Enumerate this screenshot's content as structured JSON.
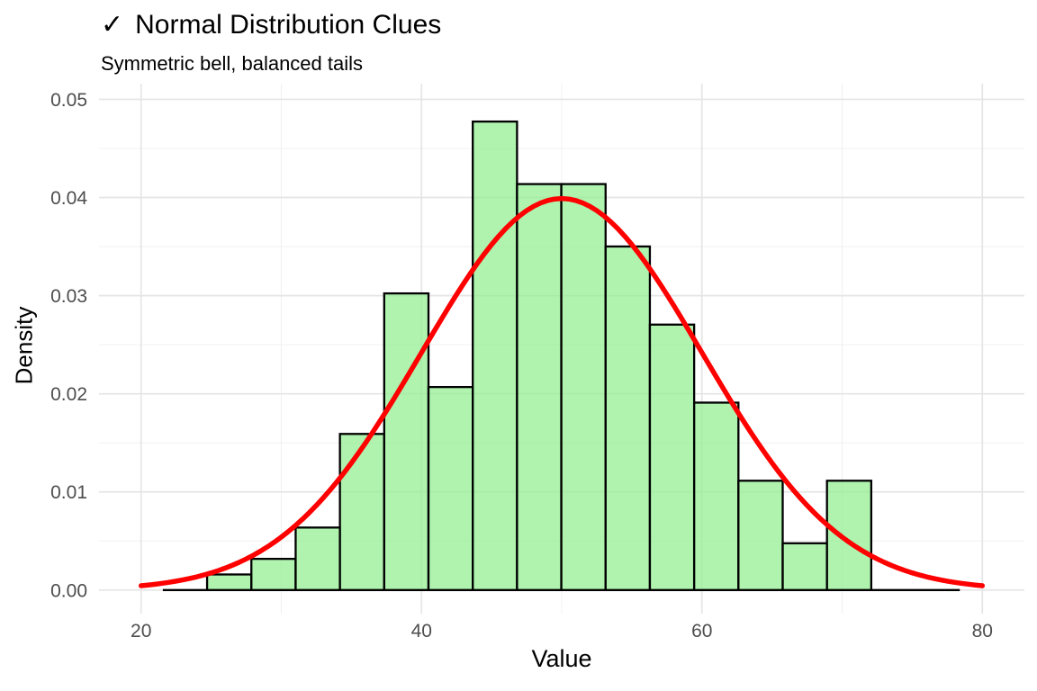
{
  "header": {
    "check_icon": "✓",
    "title": "Normal Distribution Clues",
    "subtitle": "Symmetric bell, balanced tails"
  },
  "chart_data": {
    "type": "bar",
    "subtype": "density-histogram-with-normal-curve",
    "title": "✓ Normal Distribution Clues",
    "subtitle": "Symmetric bell, balanced tails",
    "xlabel": "Value",
    "ylabel": "Density",
    "xlim": [
      17,
      83
    ],
    "ylim": [
      -0.0024,
      0.0516
    ],
    "grid": "major+minor, no axis lines, no tick marks",
    "legend": "none",
    "x_ticks": [
      20,
      40,
      60,
      80
    ],
    "x_minor_gridlines": [
      30,
      50,
      70
    ],
    "y_tick_values": [
      0,
      0.01,
      0.02,
      0.03,
      0.04,
      0.05
    ],
    "y_tick_labels": [
      "0.00",
      "0.01",
      "0.02",
      "0.03",
      "0.04",
      "0.05"
    ],
    "y_minor_gridlines": [
      0.005,
      0.015,
      0.025,
      0.035,
      0.045
    ],
    "bins": {
      "start": 21.55,
      "width": 3.158,
      "densities": [
        0,
        0.00159,
        0.00318,
        0.00637,
        0.01591,
        0.03023,
        0.02069,
        0.04774,
        0.04137,
        0.04137,
        0.03501,
        0.02705,
        0.0191,
        0.01114,
        0.00477,
        0.01114,
        0,
        0
      ]
    },
    "curve": {
      "type": "normal_density",
      "mean": 50,
      "sd": 10,
      "peak_density": 0.0399,
      "x_range": [
        20,
        80
      ]
    },
    "colors": {
      "bar_fill": "#90EE90",
      "bar_fill_opacity": 0.72,
      "bar_stroke": "#000000",
      "curve": "#FF0000",
      "grid_major": "#E5E5E5",
      "grid_minor": "#F0F0F0",
      "tick_label": "#4D4D4D",
      "text": "#000000",
      "background": "#FFFFFF"
    }
  }
}
